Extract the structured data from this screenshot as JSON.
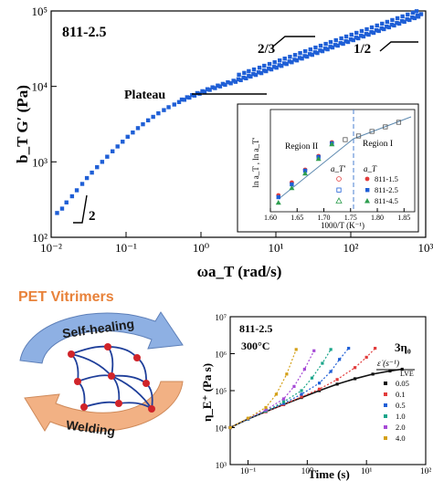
{
  "chart_data": [
    {
      "type": "scatter",
      "panel_label": "811-2.5",
      "xlabel": "ωa_T (rad/s)",
      "ylabel": "b_T G′ (Pa)",
      "xscale": "log",
      "yscale": "log",
      "xlim": [
        0.01,
        1000
      ],
      "ylim": [
        100,
        100000
      ],
      "x_ticks": [
        "10⁻²",
        "10⁻¹",
        "10⁰",
        "10¹",
        "10²",
        "10³"
      ],
      "y_ticks": [
        "10²",
        "10³",
        "10⁴",
        "10⁵"
      ],
      "color": "#1f5fd6",
      "annotations": [
        {
          "text": "Plateau"
        },
        {
          "text": "2/3"
        },
        {
          "text": "1/2"
        },
        {
          "text": "2"
        }
      ],
      "series": [
        {
          "x": [
            0.012,
            0.014,
            0.016,
            0.019,
            0.022,
            0.026,
            0.03,
            0.035,
            0.041,
            0.048,
            0.056,
            0.066,
            0.077,
            0.09,
            0.105,
            0.123,
            0.144,
            0.168,
            0.197,
            0.23,
            0.27,
            0.32,
            0.37,
            0.44,
            0.51,
            0.6,
            0.7,
            0.82,
            0.96,
            1.12,
            1.31,
            1.54,
            1.8,
            2.1,
            2.5,
            2.9,
            3.4,
            4.0,
            4.6,
            5.4,
            6.4,
            7.4,
            8.7,
            10.2,
            11.9,
            13.9,
            16.3,
            19.1,
            22.3,
            26.1,
            30.6,
            35.8,
            41.9,
            49,
            57,
            67,
            79,
            92,
            108,
            126,
            148,
            173,
            202,
            237,
            277,
            324,
            379,
            444,
            519,
            608,
            711,
            800
          ],
          "y": [
            210,
            240,
            290,
            350,
            420,
            510,
            610,
            720,
            850,
            1000,
            1170,
            1380,
            1600,
            1850,
            2150,
            2450,
            2800,
            3150,
            3550,
            3950,
            4400,
            4850,
            5300,
            5750,
            6200,
            6650,
            7100,
            7550,
            8000,
            8500,
            9000,
            9500,
            10000,
            10500,
            11000,
            11500,
            12100,
            12800,
            13500,
            14200,
            15000,
            15900,
            16800,
            17700,
            18700,
            19800,
            20900,
            22100,
            23400,
            24800,
            26200,
            27700,
            29300,
            31000,
            32800,
            34700,
            36700,
            38800,
            41000,
            43400,
            45900,
            48500,
            51300,
            54300,
            57400,
            60700,
            64200,
            67900,
            71800,
            75900,
            80300,
            84000
          ]
        }
      ]
    },
    {
      "type": "scatter",
      "xlabel": "1000/T (K⁻¹)",
      "ylabel": "ln a_T , ln a_T′",
      "xlim": [
        1.6,
        1.87
      ],
      "x_ticks": [
        "1.60",
        "1.65",
        "1.70",
        "1.75",
        "1.80",
        "1.85"
      ],
      "region_labels": [
        "Region II",
        "Region I"
      ],
      "legend_title": "a_T",
      "legend_open_label": "a_T′",
      "series": [
        {
          "name": "811-1.5",
          "color": "#e23b3b",
          "x": [
            1.615,
            1.64,
            1.665,
            1.69,
            1.715
          ],
          "y": [
            -2.9,
            -2.2,
            -1.5,
            -0.75,
            0.0
          ]
        },
        {
          "name": "811-2.5",
          "color": "#1f5fd6",
          "x": [
            1.615,
            1.64,
            1.665,
            1.69,
            1.715
          ],
          "y": [
            -3.0,
            -2.3,
            -1.55,
            -0.8,
            -0.05
          ]
        },
        {
          "name": "811-4.5",
          "color": "#2e9e4f",
          "x": [
            1.615,
            1.64,
            1.665,
            1.69,
            1.715
          ],
          "y": [
            -3.3,
            -2.5,
            -1.7,
            -0.9,
            -0.1
          ]
        }
      ],
      "open_series": {
        "x": [
          1.74,
          1.765,
          1.79,
          1.815,
          1.84
        ],
        "y": [
          0.15,
          0.35,
          0.6,
          0.85,
          1.1
        ]
      }
    },
    {
      "type": "line",
      "panel_label": "811-2.5",
      "temperature": "300°C",
      "xlabel": "Time (s)",
      "ylabel": "η_E⁺ (Pa s)",
      "xscale": "log",
      "yscale": "log",
      "xlim": [
        0.05,
        100
      ],
      "ylim": [
        1000,
        10000000
      ],
      "x_ticks": [
        "10⁻¹",
        "10⁰",
        "10¹",
        "10²"
      ],
      "y_ticks": [
        "10³",
        "10⁴",
        "10⁵",
        "10⁶",
        "10⁷"
      ],
      "reference_label": "3η₀",
      "reference_sublabel": "LVE",
      "legend_title": "ε̇ (s⁻¹)",
      "series": [
        {
          "name": "0.05",
          "color": "#111111",
          "x": [
            0.05,
            0.1,
            0.2,
            0.4,
            0.8,
            1.6,
            3.2,
            6.4,
            12.8,
            25,
            40
          ],
          "y": [
            10000,
            17000,
            27000,
            42000,
            65000,
            100000,
            150000,
            210000,
            280000,
            340000,
            380000
          ]
        },
        {
          "name": "0.1",
          "color": "#e23b3b",
          "x": [
            0.05,
            0.1,
            0.2,
            0.4,
            0.8,
            1.6,
            3.2,
            6.4,
            10,
            14
          ],
          "y": [
            10000,
            17000,
            27000,
            42000,
            68000,
            110000,
            200000,
            420000,
            800000,
            1400000
          ]
        },
        {
          "name": "0.5",
          "color": "#1f5fd6",
          "x": [
            0.05,
            0.1,
            0.2,
            0.4,
            0.8,
            1.6,
            2.5,
            3.5,
            5
          ],
          "y": [
            10000,
            17000,
            28000,
            45000,
            80000,
            160000,
            330000,
            700000,
            1400000
          ]
        },
        {
          "name": "1.0",
          "color": "#1aa58a",
          "x": [
            0.05,
            0.1,
            0.2,
            0.4,
            0.8,
            1.2,
            1.8,
            2.5
          ],
          "y": [
            10000,
            17000,
            28000,
            50000,
            100000,
            220000,
            550000,
            1300000
          ]
        },
        {
          "name": "2.0",
          "color": "#a64ad6",
          "x": [
            0.05,
            0.1,
            0.2,
            0.4,
            0.6,
            0.9,
            1.3
          ],
          "y": [
            10000,
            17500,
            30000,
            60000,
            130000,
            380000,
            1200000
          ]
        },
        {
          "name": "4.0",
          "color": "#d4a017",
          "x": [
            0.05,
            0.1,
            0.2,
            0.3,
            0.45,
            0.65
          ],
          "y": [
            10000,
            18000,
            35000,
            80000,
            280000,
            1300000
          ]
        }
      ]
    }
  ],
  "schematic": {
    "title": "PET Vitrimers",
    "top_arrow": "Self-healing",
    "bottom_arrow": "Welding",
    "title_color": "#e8823a",
    "top_color": "#8eb0e3",
    "bottom_color": "#f2b184"
  }
}
